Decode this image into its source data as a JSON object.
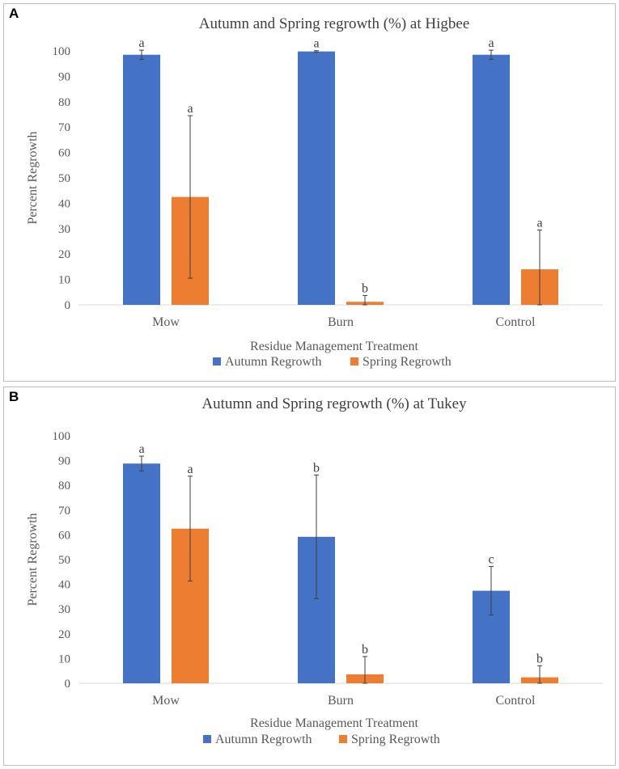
{
  "chart_data": [
    {
      "panel": "A",
      "type": "bar",
      "title": "Autumn and Spring regrowth (%) at Higbee",
      "xlabel": "Residue Management Treatment",
      "ylabel": "Percent Regrowth",
      "ylim": [
        0,
        100
      ],
      "yticks": [
        0,
        10,
        20,
        30,
        40,
        50,
        60,
        70,
        80,
        90,
        100
      ],
      "categories": [
        "Mow",
        "Burn",
        "Control"
      ],
      "legend_position": "bottom",
      "series": [
        {
          "name": "Autumn Regrowth",
          "color": "#4472C4",
          "values": [
            98.5,
            99.8,
            98.5
          ],
          "errors": [
            1.8,
            0.3,
            1.8
          ],
          "letters": [
            "a",
            "a",
            "a"
          ]
        },
        {
          "name": "Spring Regrowth",
          "color": "#ED7D31",
          "values": [
            42.5,
            1.2,
            14
          ],
          "errors": [
            32,
            2.5,
            15.5
          ],
          "letters": [
            "a",
            "b",
            "a"
          ]
        }
      ]
    },
    {
      "panel": "B",
      "type": "bar",
      "title": "Autumn and Spring regrowth (%) at Tukey",
      "xlabel": "Residue Management Treatment",
      "ylabel": "Percent Regrowth",
      "ylim": [
        0,
        100
      ],
      "yticks": [
        0,
        10,
        20,
        30,
        40,
        50,
        60,
        70,
        80,
        90,
        100
      ],
      "categories": [
        "Mow",
        "Burn",
        "Control"
      ],
      "legend_position": "bottom",
      "series": [
        {
          "name": "Autumn Regrowth",
          "color": "#4472C4",
          "values": [
            88.8,
            59.2,
            37.4
          ],
          "errors": [
            3,
            25,
            9.8
          ],
          "letters": [
            "a",
            "b",
            "c"
          ]
        },
        {
          "name": "Spring Regrowth",
          "color": "#ED7D31",
          "values": [
            62.5,
            3.6,
            2.4
          ],
          "errors": [
            21.2,
            7.2,
            4.7
          ],
          "letters": [
            "a",
            "b",
            "b"
          ]
        }
      ]
    }
  ]
}
